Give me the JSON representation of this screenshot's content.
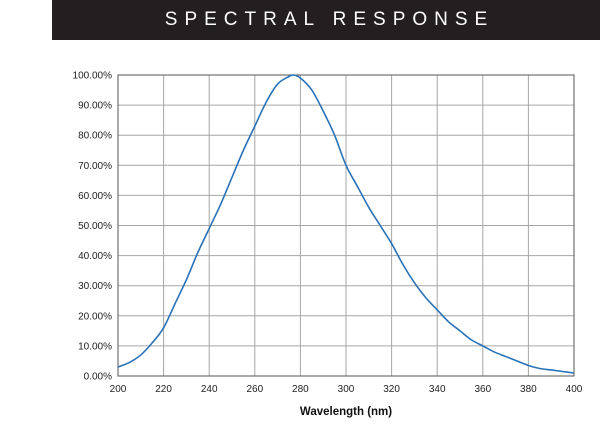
{
  "header": {
    "title": "SPECTRAL RESPONSE"
  },
  "colors": {
    "banner_bg": "#231f20",
    "banner_text": "#ffffff",
    "curve": "#2a72b8",
    "grid": "#a6a6a6",
    "axis": "#555555"
  },
  "chart_data": {
    "type": "line",
    "title": "",
    "xlabel": "Wavelength (nm)",
    "ylabel": "",
    "xlim": [
      200,
      400
    ],
    "ylim": [
      0,
      100
    ],
    "grid": true,
    "x_ticks": [
      200,
      220,
      240,
      260,
      280,
      300,
      320,
      340,
      360,
      380,
      400
    ],
    "x_tick_labels": [
      "200",
      "220",
      "240",
      "260",
      "280",
      "300",
      "320",
      "340",
      "360",
      "380",
      "400"
    ],
    "y_ticks": [
      0,
      10,
      20,
      30,
      40,
      50,
      60,
      70,
      80,
      90,
      100
    ],
    "y_tick_labels": [
      "0.00%",
      "10.00%",
      "20.00%",
      "30.00%",
      "40.00%",
      "50.00%",
      "60.00%",
      "70.00%",
      "80.00%",
      "90.00%",
      "100.00%"
    ],
    "series": [
      {
        "x": [
          200,
          205,
          210,
          215,
          220,
          225,
          230,
          235,
          240,
          245,
          250,
          255,
          260,
          265,
          270,
          275,
          277,
          280,
          285,
          290,
          295,
          300,
          305,
          310,
          315,
          320,
          325,
          330,
          335,
          340,
          345,
          350,
          355,
          360,
          365,
          370,
          375,
          380,
          385,
          390,
          395,
          400
        ],
        "y": [
          3,
          4.5,
          7,
          11,
          16,
          24,
          32,
          41,
          49,
          57,
          66,
          75,
          83,
          91,
          97,
          99.5,
          100,
          99,
          95,
          88,
          80,
          70,
          63,
          56,
          50,
          44,
          37,
          31,
          26,
          22,
          18,
          15,
          12,
          10,
          8,
          6.5,
          5,
          3.5,
          2.5,
          2,
          1.5,
          1
        ]
      }
    ]
  }
}
